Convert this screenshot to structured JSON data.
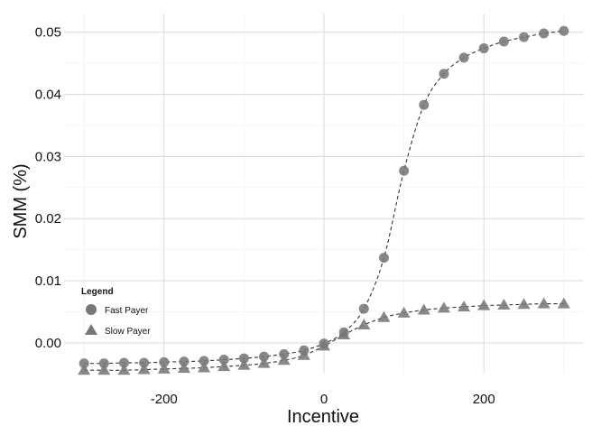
{
  "chart_data": {
    "type": "scatter",
    "title": "",
    "xlabel": "Incentive",
    "ylabel": "SMM (%)",
    "xlim": [
      -325,
      325
    ],
    "ylim": [
      -0.0048,
      0.053
    ],
    "x_ticks": [
      -200,
      0,
      200
    ],
    "x_tick_labels": [
      "-200",
      "0",
      "200"
    ],
    "y_ticks": [
      0,
      0.01,
      0.02,
      0.03,
      0.04,
      0.05
    ],
    "y_tick_labels": [
      "0.00",
      "0.01",
      "0.02",
      "0.03",
      "0.04",
      "0.05"
    ],
    "grid": true,
    "legend": {
      "title": "Legend",
      "position": "left"
    },
    "x": [
      -300,
      -275,
      -250,
      -225,
      -200,
      -175,
      -150,
      -125,
      -100,
      -75,
      -50,
      -25,
      0,
      25,
      50,
      75,
      100,
      125,
      150,
      175,
      200,
      225,
      250,
      275,
      300
    ],
    "series": [
      {
        "name": "Fast Payer",
        "marker": "circle",
        "color": "#777777",
        "line_style": "dashed",
        "values": [
          -0.0033,
          -0.0033,
          -0.0032,
          -0.0032,
          -0.0031,
          -0.003,
          -0.0029,
          -0.0027,
          -0.0025,
          -0.0022,
          -0.0018,
          -0.0012,
          -0.0001,
          0.0017,
          0.0055,
          0.0137,
          0.0277,
          0.0383,
          0.0433,
          0.0459,
          0.0474,
          0.0485,
          0.0492,
          0.0498,
          0.0502
        ]
      },
      {
        "name": "Slow Payer",
        "marker": "triangle",
        "color": "#777777",
        "line_style": "dashed",
        "values": [
          -0.0044,
          -0.0044,
          -0.0044,
          -0.0043,
          -0.0042,
          -0.0041,
          -0.004,
          -0.0038,
          -0.0036,
          -0.0033,
          -0.0028,
          -0.002,
          -0.0005,
          0.0013,
          0.0029,
          0.0041,
          0.0048,
          0.0053,
          0.0056,
          0.0058,
          0.006,
          0.0061,
          0.0062,
          0.0063,
          0.0063
        ]
      }
    ]
  }
}
